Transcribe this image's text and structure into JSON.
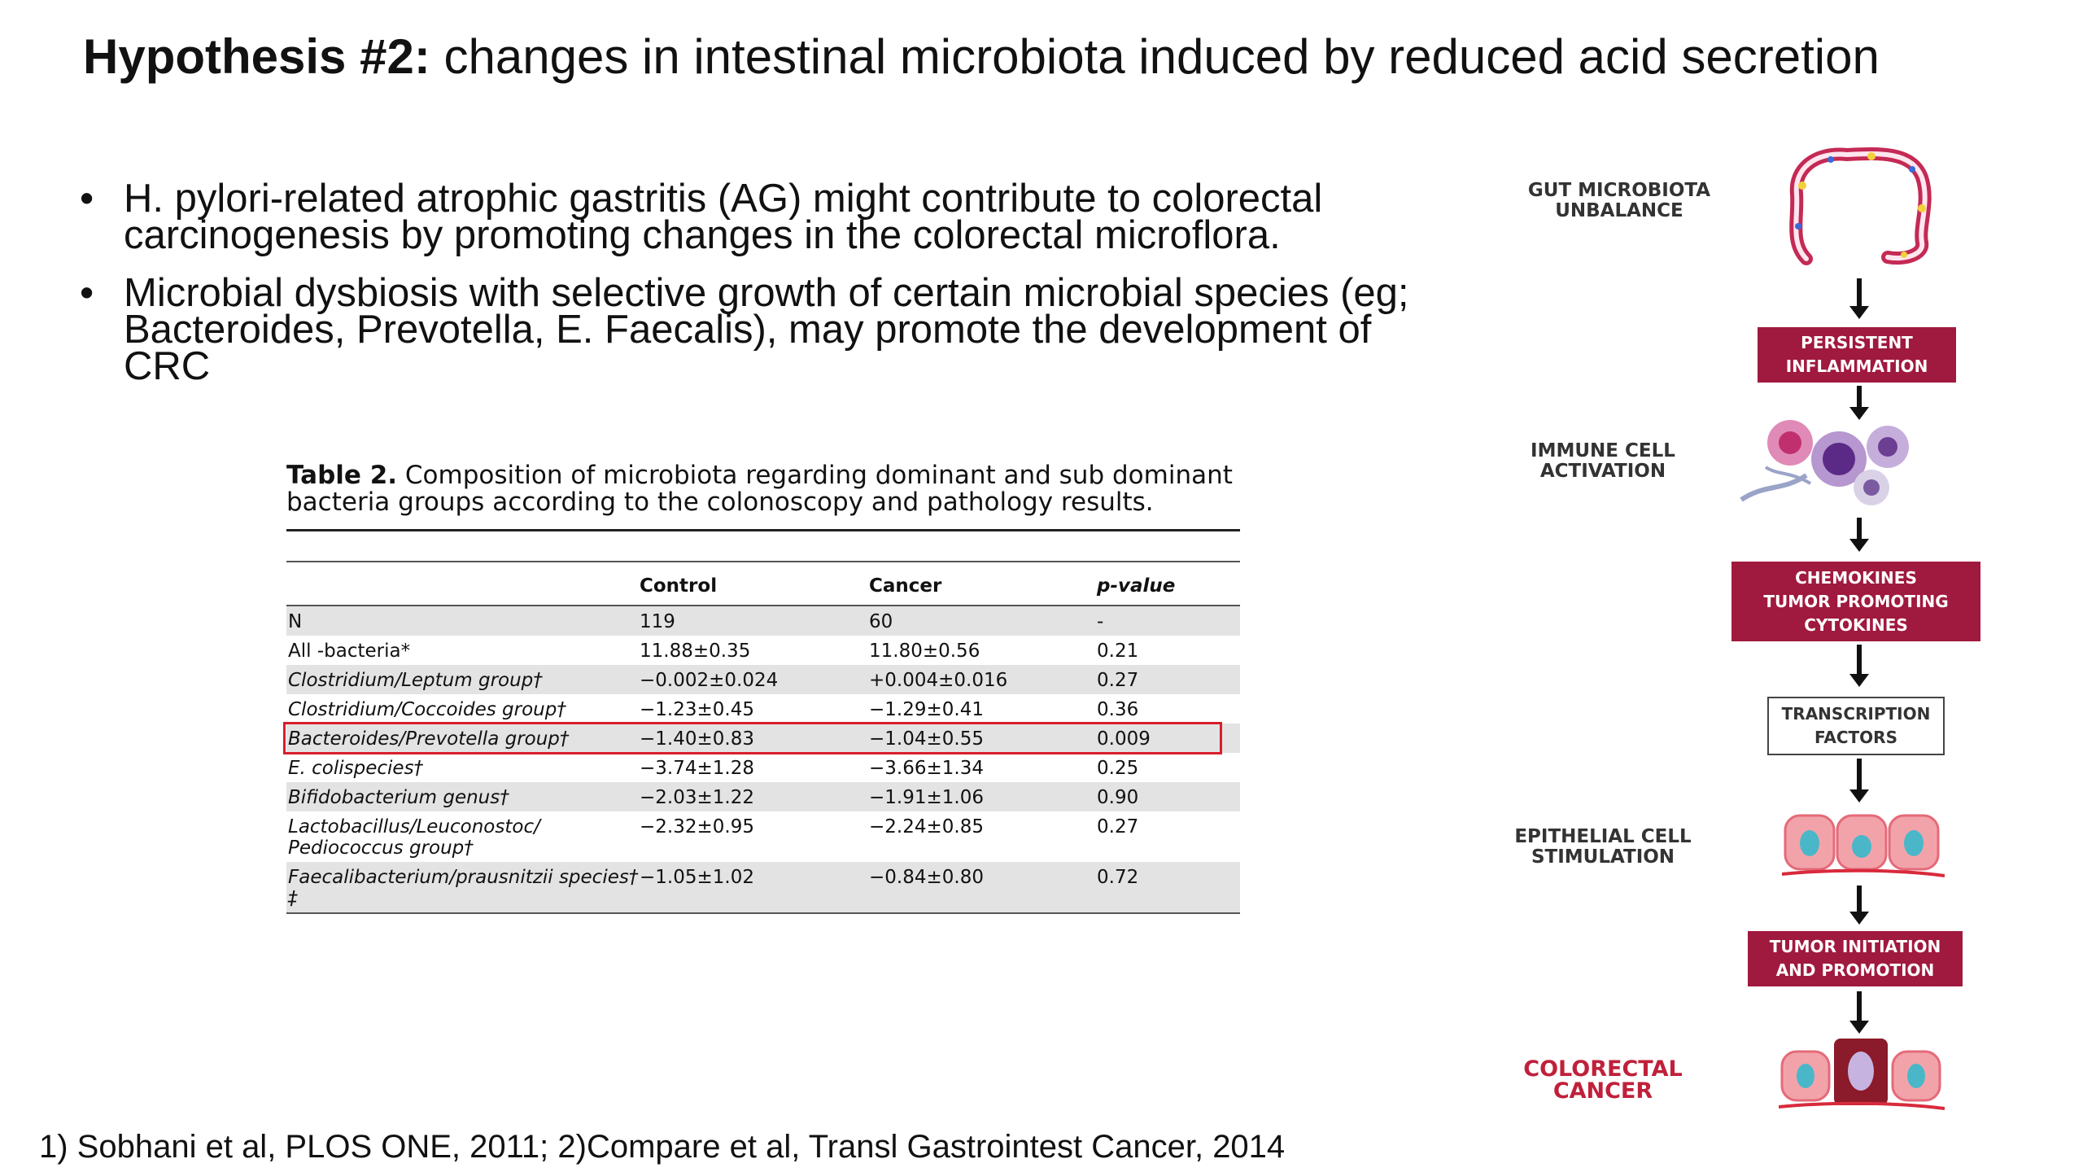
{
  "slide": {
    "title_lead": "Hypothesis #2:",
    "title_rest": " changes in intestinal microbiota induced by reduced acid secretion",
    "bullets": [
      "H. pylori-related atrophic gastritis (AG) might contribute to colorectal carcinogenesis by promoting changes in the colorectal microflora.",
      "Microbial dysbiosis with selective growth of certain microbial species (eg; Bacteroides, Prevotella, E. Faecalis), may promote the development of CRC"
    ],
    "bullet_glyph": "•",
    "reference": "1) Sobhani et al, PLOS ONE, 2011; 2)Compare et al, Transl Gastrointest Cancer, 2014"
  },
  "table": {
    "caption_lead": "Table 2.",
    "caption_rest": " Composition of microbiota regarding dominant and sub dominant bacteria groups according to the colonoscopy and pathology results.",
    "headers": [
      "",
      "Control",
      "Cancer",
      "p-value"
    ],
    "rows": [
      {
        "name": "N",
        "control": "119",
        "cancer": "60",
        "p": "-"
      },
      {
        "name": "All -bacteria*",
        "control": "11.88±0.35",
        "cancer": "11.80±0.56",
        "p": "0.21"
      },
      {
        "name": "Clostridium/Leptum group†",
        "control": "−0.002±0.024",
        "cancer": "+0.004±0.016",
        "p": "0.27"
      },
      {
        "name": "Clostridium/Coccoides group†",
        "control": "−1.23±0.45",
        "cancer": "−1.29±0.41",
        "p": "0.36"
      },
      {
        "name": "Bacteroides/Prevotella group†",
        "control": "−1.40±0.83",
        "cancer": "−1.04±0.55",
        "p": "0.009"
      },
      {
        "name": "E. colispecies†",
        "control": "−3.74±1.28",
        "cancer": "−3.66±1.34",
        "p": "0.25"
      },
      {
        "name": "Bifidobacterium genus†",
        "control": "−2.03±1.22",
        "cancer": "−1.91±1.06",
        "p": "0.90"
      },
      {
        "name": "Lactobacillus/Leuconostoc/ Pediococcus group†",
        "control": "−2.32±0.95",
        "cancer": "−2.24±0.85",
        "p": "0.27"
      },
      {
        "name": "Faecalibacterium/prausnitzii species† ‡",
        "control": "−1.05±1.02",
        "cancer": "−0.84±0.80",
        "p": "0.72"
      }
    ]
  },
  "flow": {
    "side_labels": {
      "gut": "GUT MICROBIOTA UNBALANCE",
      "immune": "IMMUNE CELL ACTIVATION",
      "epithelial": "EPITHELIAL CELL STIMULATION",
      "crc": "COLORECTAL CANCER"
    },
    "boxes": {
      "inflammation": [
        "PERSISTENT",
        "INFLAMMATION"
      ],
      "chemokines": [
        "CHEMOKINES",
        "TUMOR PROMOTING",
        "CYTOKINES"
      ],
      "transcription": [
        "TRANSCRIPTION",
        "FACTORS"
      ],
      "tumor": [
        "TUMOR INITIATION",
        "AND PROMOTION"
      ]
    },
    "colors": {
      "box_red": "#a0193e",
      "label_red": "#c0203a",
      "highlight": "#d81e2a"
    }
  }
}
